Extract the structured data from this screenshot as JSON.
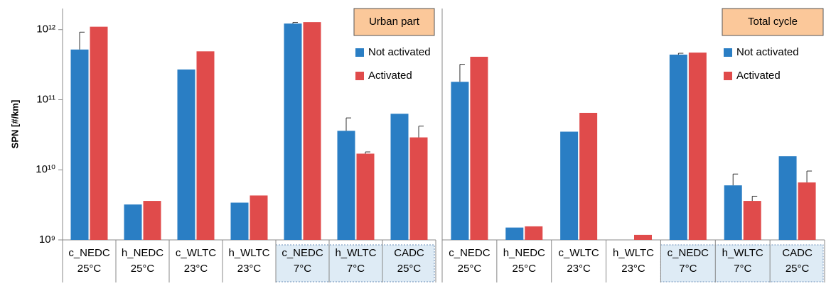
{
  "chart_data": [
    {
      "type": "bar",
      "ylabel": "SPN [#/km]",
      "legend_title": "Urban part",
      "log_scale": true,
      "ylim": [
        1000000000,
        2000000000000
      ],
      "yticks": [
        {
          "value": 1000000000,
          "label": "10⁹"
        },
        {
          "value": 10000000000,
          "label": "10¹⁰"
        },
        {
          "value": 100000000000,
          "label": "10¹¹"
        },
        {
          "value": 1000000000000,
          "label": "10¹²"
        }
      ],
      "categories": [
        [
          "c_NEDC",
          "25°C"
        ],
        [
          "h_NEDC",
          "25°C"
        ],
        [
          "c_WLTC",
          "23°C"
        ],
        [
          "h_WLTC",
          "23°C"
        ],
        [
          "c_NEDC",
          "7°C"
        ],
        [
          "h_WLTC",
          "7°C"
        ],
        [
          "CADC",
          "25°C"
        ]
      ],
      "series": [
        {
          "name": "Not activated",
          "color": "#2a7ec4",
          "values": [
            520000000000,
            3200000000,
            270000000000,
            3400000000,
            1220000000000,
            36000000000,
            63000000000
          ],
          "errors": [
            400000000000,
            null,
            null,
            null,
            50000000000,
            19000000000,
            null
          ]
        },
        {
          "name": "Activated",
          "color": "#e04b4b",
          "values": [
            1100000000000,
            3600000000,
            490000000000,
            4300000000,
            1280000000000,
            17000000000,
            29000000000
          ],
          "errors": [
            null,
            null,
            null,
            null,
            null,
            1000000000,
            13000000000
          ]
        }
      ]
    },
    {
      "type": "bar",
      "legend_title": "Total cycle",
      "log_scale": true,
      "ylim": [
        1000000000,
        2000000000000
      ],
      "categories": [
        [
          "c_NEDC",
          "25°C"
        ],
        [
          "h_NEDC",
          "25°C"
        ],
        [
          "c_WLTC",
          "23°C"
        ],
        [
          "h_WLTC",
          "23°C"
        ],
        [
          "c_NEDC",
          "7°C"
        ],
        [
          "h_WLTC",
          "7°C"
        ],
        [
          "CADC",
          "25°C"
        ]
      ],
      "series": [
        {
          "name": "Not activated",
          "color": "#2a7ec4",
          "values": [
            180000000000,
            1500000000,
            35000000000,
            null,
            440000000000,
            6000000000,
            15600000000
          ],
          "errors": [
            140000000000,
            null,
            null,
            null,
            20000000000,
            2700000000,
            null
          ]
        },
        {
          "name": "Activated",
          "color": "#e04b4b",
          "values": [
            410000000000,
            1560000000,
            65000000000,
            1180000000,
            470000000000,
            3600000000,
            6600000000
          ],
          "errors": [
            null,
            null,
            null,
            null,
            null,
            600000000,
            3000000000
          ]
        }
      ]
    }
  ]
}
